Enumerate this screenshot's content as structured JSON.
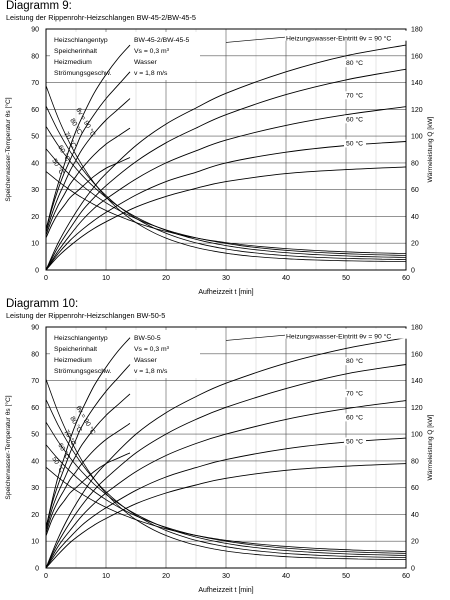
{
  "charts": [
    {
      "title": "Diagramm 9:",
      "subtitle": "Leistung der Rippenrohr-Heizschlangen BW-45-2/BW-45-5",
      "specs": [
        [
          "Heizschlangentyp",
          "BW-45-2/BW-45-5"
        ],
        [
          "Speicherinhalt",
          "Vs = 0,3 m³"
        ],
        [
          "Heizmedium",
          "Wasser"
        ],
        [
          "Strömungsgeschw.",
          "v = 1,8 m/s"
        ]
      ]
    },
    {
      "title": "Diagramm 10:",
      "subtitle": "Leistung der Rippenrohr-Heizschlangen BW-50-5",
      "specs": [
        [
          "Heizschlangentyp",
          "BW-50-5"
        ],
        [
          "Speicherinhalt",
          "Vs = 0,3 m³"
        ],
        [
          "Heizmedium",
          "Wasser"
        ],
        [
          "Strömungsgeschw.",
          "v = 1,8 m/s"
        ]
      ]
    }
  ],
  "chart_data": [
    {
      "type": "line",
      "title": "Diagramm 9:",
      "subtitle": "Leistung der Rippenrohr-Heizschlangen BW-45-2/BW-45-5",
      "xlabel": "Aufheizzeit t [min]",
      "ylabel_left": "Speicherwasser-Temperatur θs [°C]",
      "ylabel_right": "Wärmeleistung Q [kW]",
      "xlim": [
        0,
        60
      ],
      "ylim_left": [
        0,
        90
      ],
      "ylim_right": [
        0,
        180
      ],
      "xticks": [
        0,
        10,
        20,
        30,
        40,
        50,
        60
      ],
      "yticks_left": [
        0,
        10,
        20,
        30,
        40,
        50,
        60,
        70,
        80,
        90
      ],
      "yticks_right": [
        0,
        20,
        40,
        60,
        80,
        100,
        120,
        140,
        160,
        180
      ],
      "grid": true,
      "series_temperature": [
        {
          "name": "90 °C",
          "x": [
            0,
            1,
            2,
            3,
            4,
            5,
            6,
            8,
            10,
            12,
            14
          ],
          "y": [
            15,
            24,
            32,
            39,
            46,
            52,
            57,
            66,
            73,
            79,
            84
          ]
        },
        {
          "name": "80 °C",
          "x": [
            0,
            1,
            2,
            3,
            4,
            5,
            6,
            8,
            10,
            12,
            14
          ],
          "y": [
            15,
            23,
            30,
            36,
            41,
            46,
            51,
            58,
            64,
            69,
            74
          ]
        },
        {
          "name": "70 °C",
          "x": [
            0,
            1,
            2,
            3,
            4,
            5,
            6,
            8,
            10,
            12,
            14
          ],
          "y": [
            14,
            21,
            27,
            32,
            37,
            41,
            45,
            51,
            56,
            60,
            64
          ]
        },
        {
          "name": "60 °C",
          "x": [
            0,
            1,
            2,
            3,
            4,
            5,
            6,
            8,
            10,
            12,
            14
          ],
          "y": [
            13,
            19,
            24,
            28,
            32,
            35,
            38,
            43,
            47,
            50,
            53
          ]
        },
        {
          "name": "50 °C",
          "x": [
            0,
            1,
            2,
            3,
            4,
            5,
            6,
            8,
            10,
            12,
            14
          ],
          "y": [
            12,
            17,
            21,
            24,
            27,
            29,
            31,
            35,
            38,
            40,
            42
          ]
        }
      ],
      "series_heat_output": [
        {
          "name": "90 °C",
          "x": [
            0,
            2,
            4,
            6,
            8,
            10,
            15,
            20,
            25,
            30,
            40,
            50,
            60
          ],
          "y": [
            0,
            20,
            36,
            50,
            62,
            72,
            93,
            109,
            121,
            132,
            148,
            160,
            168
          ]
        },
        {
          "name": "80 °C",
          "x": [
            0,
            2,
            4,
            6,
            8,
            10,
            15,
            20,
            25,
            30,
            40,
            50,
            60
          ],
          "y": [
            0,
            17,
            31,
            44,
            54,
            63,
            81,
            95,
            106,
            116,
            131,
            142,
            150
          ]
        },
        {
          "name": "70 °C",
          "x": [
            0,
            2,
            4,
            6,
            8,
            10,
            15,
            20,
            25,
            30,
            40,
            50,
            60
          ],
          "y": [
            0,
            14,
            26,
            37,
            46,
            53,
            68,
            80,
            89,
            97,
            108,
            116,
            122
          ]
        },
        {
          "name": "60 °C",
          "x": [
            0,
            2,
            4,
            6,
            8,
            10,
            15,
            20,
            25,
            30,
            40,
            50,
            60
          ],
          "y": [
            0,
            12,
            22,
            30,
            37,
            43,
            56,
            66,
            73,
            80,
            88,
            93,
            96
          ]
        },
        {
          "name": "50 °C",
          "x": [
            0,
            2,
            4,
            6,
            8,
            10,
            15,
            20,
            25,
            30,
            40,
            50,
            60
          ],
          "y": [
            0,
            10,
            18,
            25,
            31,
            36,
            47,
            55,
            61,
            66,
            72,
            75,
            77
          ]
        }
      ],
      "annotations": {
        "inlet_label": "Heizungswasser-Eintritt θv = 90 °C",
        "curve_labels": [
          "80 °C",
          "70 °C",
          "60 °C",
          "50 °C"
        ],
        "left_labels": [
          "θv = 90 °C",
          "80 °C",
          "70 °C",
          "60 °C",
          "50 °C"
        ]
      }
    },
    {
      "type": "line",
      "title": "Diagramm 10:",
      "subtitle": "Leistung der Rippenrohr-Heizschlangen BW-50-5",
      "xlabel": "Aufheizzeit t [min]",
      "ylabel_left": "Speicherwasser-Temperatur θs [°C]",
      "ylabel_right": "Wärmeleistung Q [kW]",
      "xlim": [
        0,
        60
      ],
      "ylim_left": [
        0,
        90
      ],
      "ylim_right": [
        0,
        180
      ],
      "xticks": [
        0,
        10,
        20,
        30,
        40,
        50,
        60
      ],
      "yticks_left": [
        0,
        10,
        20,
        30,
        40,
        50,
        60,
        70,
        80,
        90
      ],
      "yticks_right": [
        0,
        20,
        40,
        60,
        80,
        100,
        120,
        140,
        160,
        180
      ],
      "grid": true,
      "series_temperature": [
        {
          "name": "90 °C",
          "x": [
            0,
            1,
            2,
            3,
            4,
            5,
            6,
            8,
            10,
            12,
            14
          ],
          "y": [
            15,
            25,
            34,
            41,
            48,
            54,
            59,
            68,
            75,
            81,
            86
          ]
        },
        {
          "name": "80 °C",
          "x": [
            0,
            1,
            2,
            3,
            4,
            5,
            6,
            8,
            10,
            12,
            14
          ],
          "y": [
            15,
            24,
            31,
            37,
            43,
            48,
            53,
            60,
            66,
            71,
            76
          ]
        },
        {
          "name": "70 °C",
          "x": [
            0,
            1,
            2,
            3,
            4,
            5,
            6,
            8,
            10,
            12,
            14
          ],
          "y": [
            14,
            22,
            28,
            33,
            38,
            42,
            46,
            52,
            57,
            61,
            65
          ]
        },
        {
          "name": "60 °C",
          "x": [
            0,
            1,
            2,
            3,
            4,
            5,
            6,
            8,
            10,
            12,
            14
          ],
          "y": [
            13,
            20,
            25,
            29,
            33,
            36,
            39,
            44,
            48,
            51,
            54
          ]
        },
        {
          "name": "50 °C",
          "x": [
            0,
            1,
            2,
            3,
            4,
            5,
            6,
            8,
            10,
            12,
            14
          ],
          "y": [
            12,
            18,
            22,
            25,
            28,
            30,
            32,
            36,
            39,
            41,
            43
          ]
        }
      ],
      "series_heat_output": [
        {
          "name": "90 °C",
          "x": [
            0,
            2,
            4,
            6,
            8,
            10,
            15,
            20,
            25,
            30,
            40,
            50,
            60
          ],
          "y": [
            0,
            22,
            40,
            55,
            68,
            78,
            100,
            116,
            128,
            138,
            153,
            164,
            172
          ]
        },
        {
          "name": "80 °C",
          "x": [
            0,
            2,
            4,
            6,
            8,
            10,
            15,
            20,
            25,
            30,
            40,
            50,
            60
          ],
          "y": [
            0,
            19,
            34,
            47,
            58,
            67,
            86,
            100,
            111,
            120,
            134,
            145,
            152
          ]
        },
        {
          "name": "70 °C",
          "x": [
            0,
            2,
            4,
            6,
            8,
            10,
            15,
            20,
            25,
            30,
            40,
            50,
            60
          ],
          "y": [
            0,
            16,
            28,
            39,
            48,
            56,
            72,
            84,
            93,
            100,
            111,
            119,
            125
          ]
        },
        {
          "name": "60 °C",
          "x": [
            0,
            2,
            4,
            6,
            8,
            10,
            15,
            20,
            25,
            30,
            40,
            50,
            60
          ],
          "y": [
            0,
            13,
            23,
            32,
            39,
            45,
            58,
            68,
            75,
            81,
            89,
            94,
            97
          ]
        },
        {
          "name": "50 °C",
          "x": [
            0,
            2,
            4,
            6,
            8,
            10,
            15,
            20,
            25,
            30,
            40,
            50,
            60
          ],
          "y": [
            0,
            10,
            19,
            26,
            32,
            37,
            48,
            56,
            62,
            67,
            73,
            76,
            78
          ]
        }
      ],
      "annotations": {
        "inlet_label": "Heizungswasser-Eintritt θv = 90 °C",
        "curve_labels": [
          "80 °C",
          "70 °C",
          "60 °C",
          "50 °C"
        ],
        "left_labels": [
          "θv = 90 °C",
          "80 °C",
          "70 °C",
          "60 °C",
          "50 °C"
        ]
      }
    }
  ]
}
